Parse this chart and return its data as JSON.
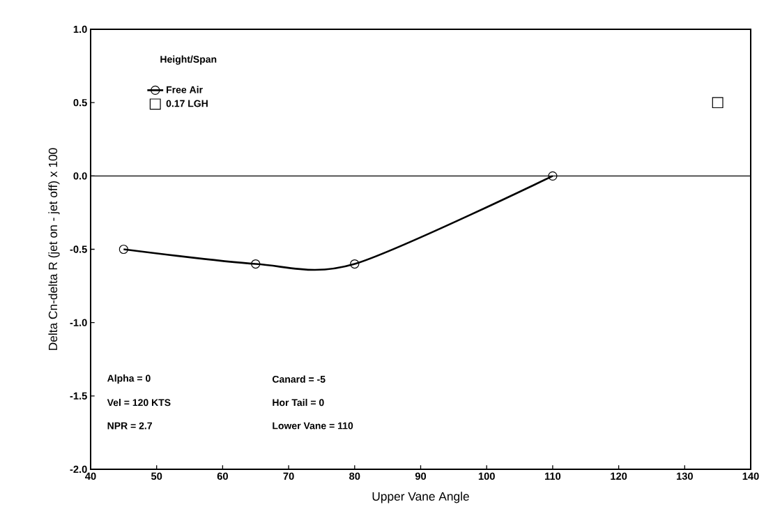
{
  "chart_data": {
    "type": "line",
    "xlabel": "Upper Vane Angle",
    "ylabel": "Delta Cn-delta R (jet on - jet off) x 100",
    "legend_title": "Height/Span",
    "legend": "top left",
    "xlim": [
      40,
      140
    ],
    "ylim": [
      -2.0,
      1.0
    ],
    "xticks": [
      40,
      50,
      60,
      70,
      80,
      90,
      100,
      110,
      120,
      130,
      140
    ],
    "yticks": [
      {
        "value": -2.0,
        "label": "-2.0"
      },
      {
        "value": -1.5,
        "label": "-1.5"
      },
      {
        "value": -1.0,
        "label": "-1.0"
      },
      {
        "value": -0.5,
        "label": "-0.5"
      },
      {
        "value": 0.0,
        "label": "0.0"
      },
      {
        "value": 0.5,
        "label": "0.5"
      },
      {
        "value": 1.0,
        "label": "1.0"
      }
    ],
    "series": [
      {
        "name": "Free Air",
        "marker": "circle",
        "color": "#000000",
        "x": [
          45,
          65,
          80,
          110
        ],
        "values": [
          -0.5,
          -0.6,
          -0.6,
          0.0
        ]
      },
      {
        "name": "0.17 LGH",
        "type": "scatter",
        "marker": "square",
        "color": "#000000",
        "x": [
          135
        ],
        "values": [
          0.5
        ]
      }
    ],
    "ref_lines": [
      {
        "axis": "y",
        "value": 0.0,
        "color": "#000000"
      }
    ],
    "annotations": [
      "Alpha = 0",
      "Vel = 120 KTS",
      "NPR = 2.7",
      "Canard = -5",
      "Hor Tail = 0",
      "Lower Vane = 110"
    ]
  }
}
